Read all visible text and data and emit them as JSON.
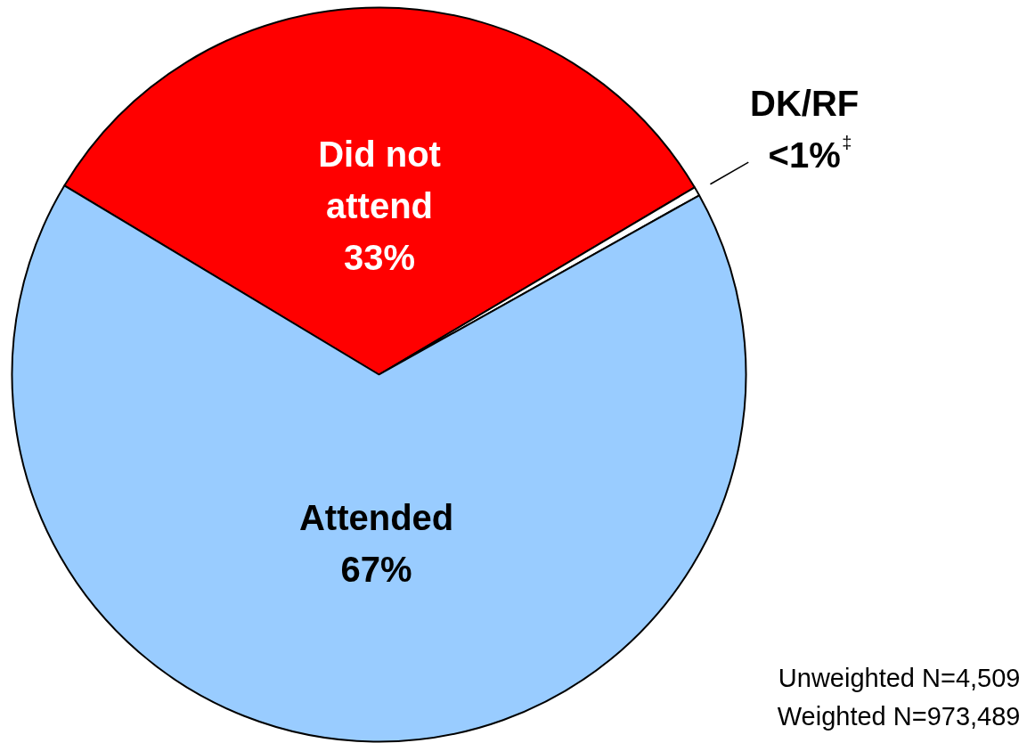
{
  "chart_data": {
    "type": "pie",
    "categories": [
      "Did not attend",
      "DK/RF",
      "Attended"
    ],
    "values": [
      33,
      0.4,
      67
    ],
    "colors": [
      "#ff0000",
      "#ffffff",
      "#99ccff"
    ],
    "value_labels": [
      "33%",
      "<1%$^{‡}$",
      "67%"
    ],
    "annotations": [
      "Unweighted N=4,509",
      "Weighted N=973,489"
    ]
  }
}
